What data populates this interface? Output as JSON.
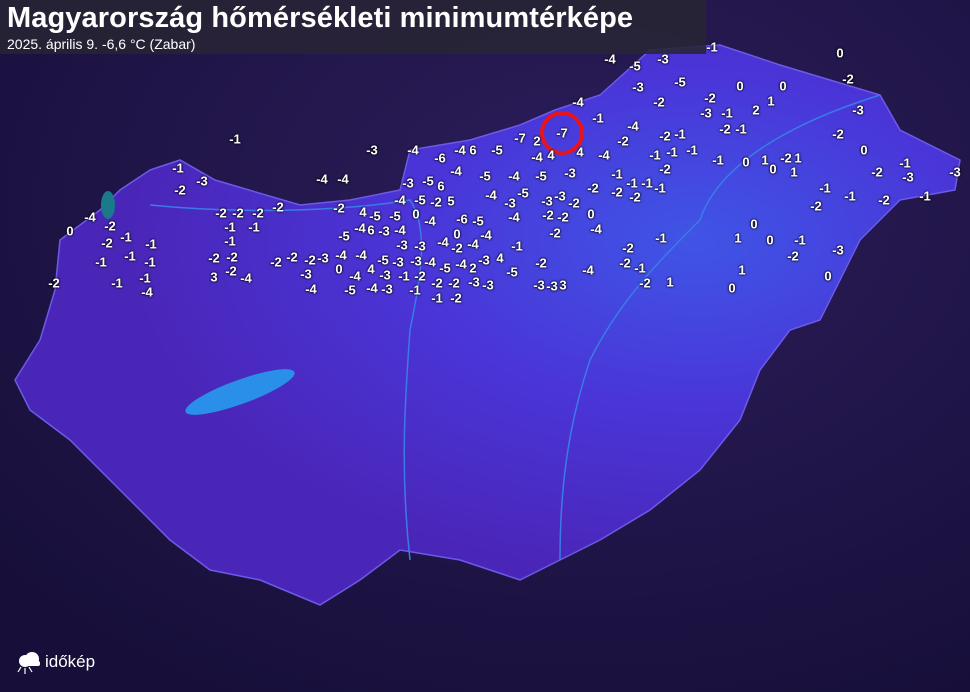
{
  "header": {
    "title": "Magyarország hőmérsékleti minimumtérképe",
    "subtitle": "2025. április 9.  -6,6 °C (Zabar)"
  },
  "logo": {
    "text": "időkép",
    "icon": "sun-cloud-icon"
  },
  "colors": {
    "background": "#1e1446",
    "country": "#4b2fd2",
    "lake": "#2a8fe8",
    "highlight": "#e8141c"
  },
  "highlight": {
    "icon": "red-circle-marker",
    "location": "Zabar"
  },
  "readings": [
    "0",
    "-2",
    "-4",
    "-5",
    "-3",
    "-1",
    "-5",
    "-3",
    "-4",
    "-2",
    "-2",
    "0",
    "0",
    "1",
    "2",
    "-3",
    "-1",
    "-3",
    "-1",
    "-4",
    "-7",
    "-7",
    "2",
    "-2",
    "-1",
    "-2",
    "-1",
    "-2",
    "-1",
    "-3",
    "-4",
    "-6",
    "-4",
    "6",
    "-5",
    "-4",
    "4",
    "4",
    "-4",
    "-2",
    "-1",
    "-1",
    "-1",
    "-1",
    "0",
    "1",
    "0",
    "-2",
    "1",
    "0",
    "1",
    "-1",
    "-2",
    "-3",
    "-3",
    "-1",
    "-3",
    "-2",
    "-4",
    "-4",
    "-3",
    "-5",
    "6",
    "-4",
    "-5",
    "-4",
    "-5",
    "-3",
    "-1",
    "-1",
    "-1",
    "-2",
    "-1",
    "-1",
    "-2",
    "-1",
    "-2",
    "-2",
    "-2",
    "-2",
    "-1",
    "-3",
    "-2",
    "-3",
    "-3",
    "-5",
    "-4",
    "-4",
    "0",
    "-2",
    "-1",
    "-2",
    "-1",
    "-2",
    "-2",
    "-2",
    "-2",
    "-2",
    "4",
    "-5",
    "-5",
    "-4",
    "-5",
    "-2",
    "5",
    "-6",
    "-5",
    "-4",
    "0",
    "0",
    "-4",
    "-4",
    "-2",
    "-2",
    "0",
    "-4",
    "-2",
    "-1",
    "-1",
    "-4",
    "6",
    "-3",
    "-4",
    "-5",
    "-1",
    "-2",
    "-3",
    "-3",
    "-4",
    "-2",
    "-4",
    "-1",
    "-2",
    "-1",
    "0",
    "1",
    "0",
    "-1",
    "-3",
    "-2",
    "-1",
    "-1",
    "-1",
    "-2",
    "-2",
    "-2",
    "-3",
    "-4",
    "-4",
    "-5",
    "-3",
    "-3",
    "-4",
    "-5",
    "-4",
    "-3",
    "4",
    "-2",
    "-4",
    "-2",
    "-1",
    "1",
    "0",
    "-2",
    "-2",
    "3",
    "-3",
    "0",
    "-4",
    "4",
    "-3",
    "-1",
    "-2",
    "-2",
    "-2",
    "2",
    "-3",
    "-5",
    "-2",
    "1",
    "0",
    "-2",
    "-1",
    "-1",
    "-4",
    "-4",
    "-4",
    "-5",
    "-4",
    "-3",
    "-1",
    "-1",
    "-2",
    "-3",
    "-3",
    "-3",
    "3"
  ]
}
